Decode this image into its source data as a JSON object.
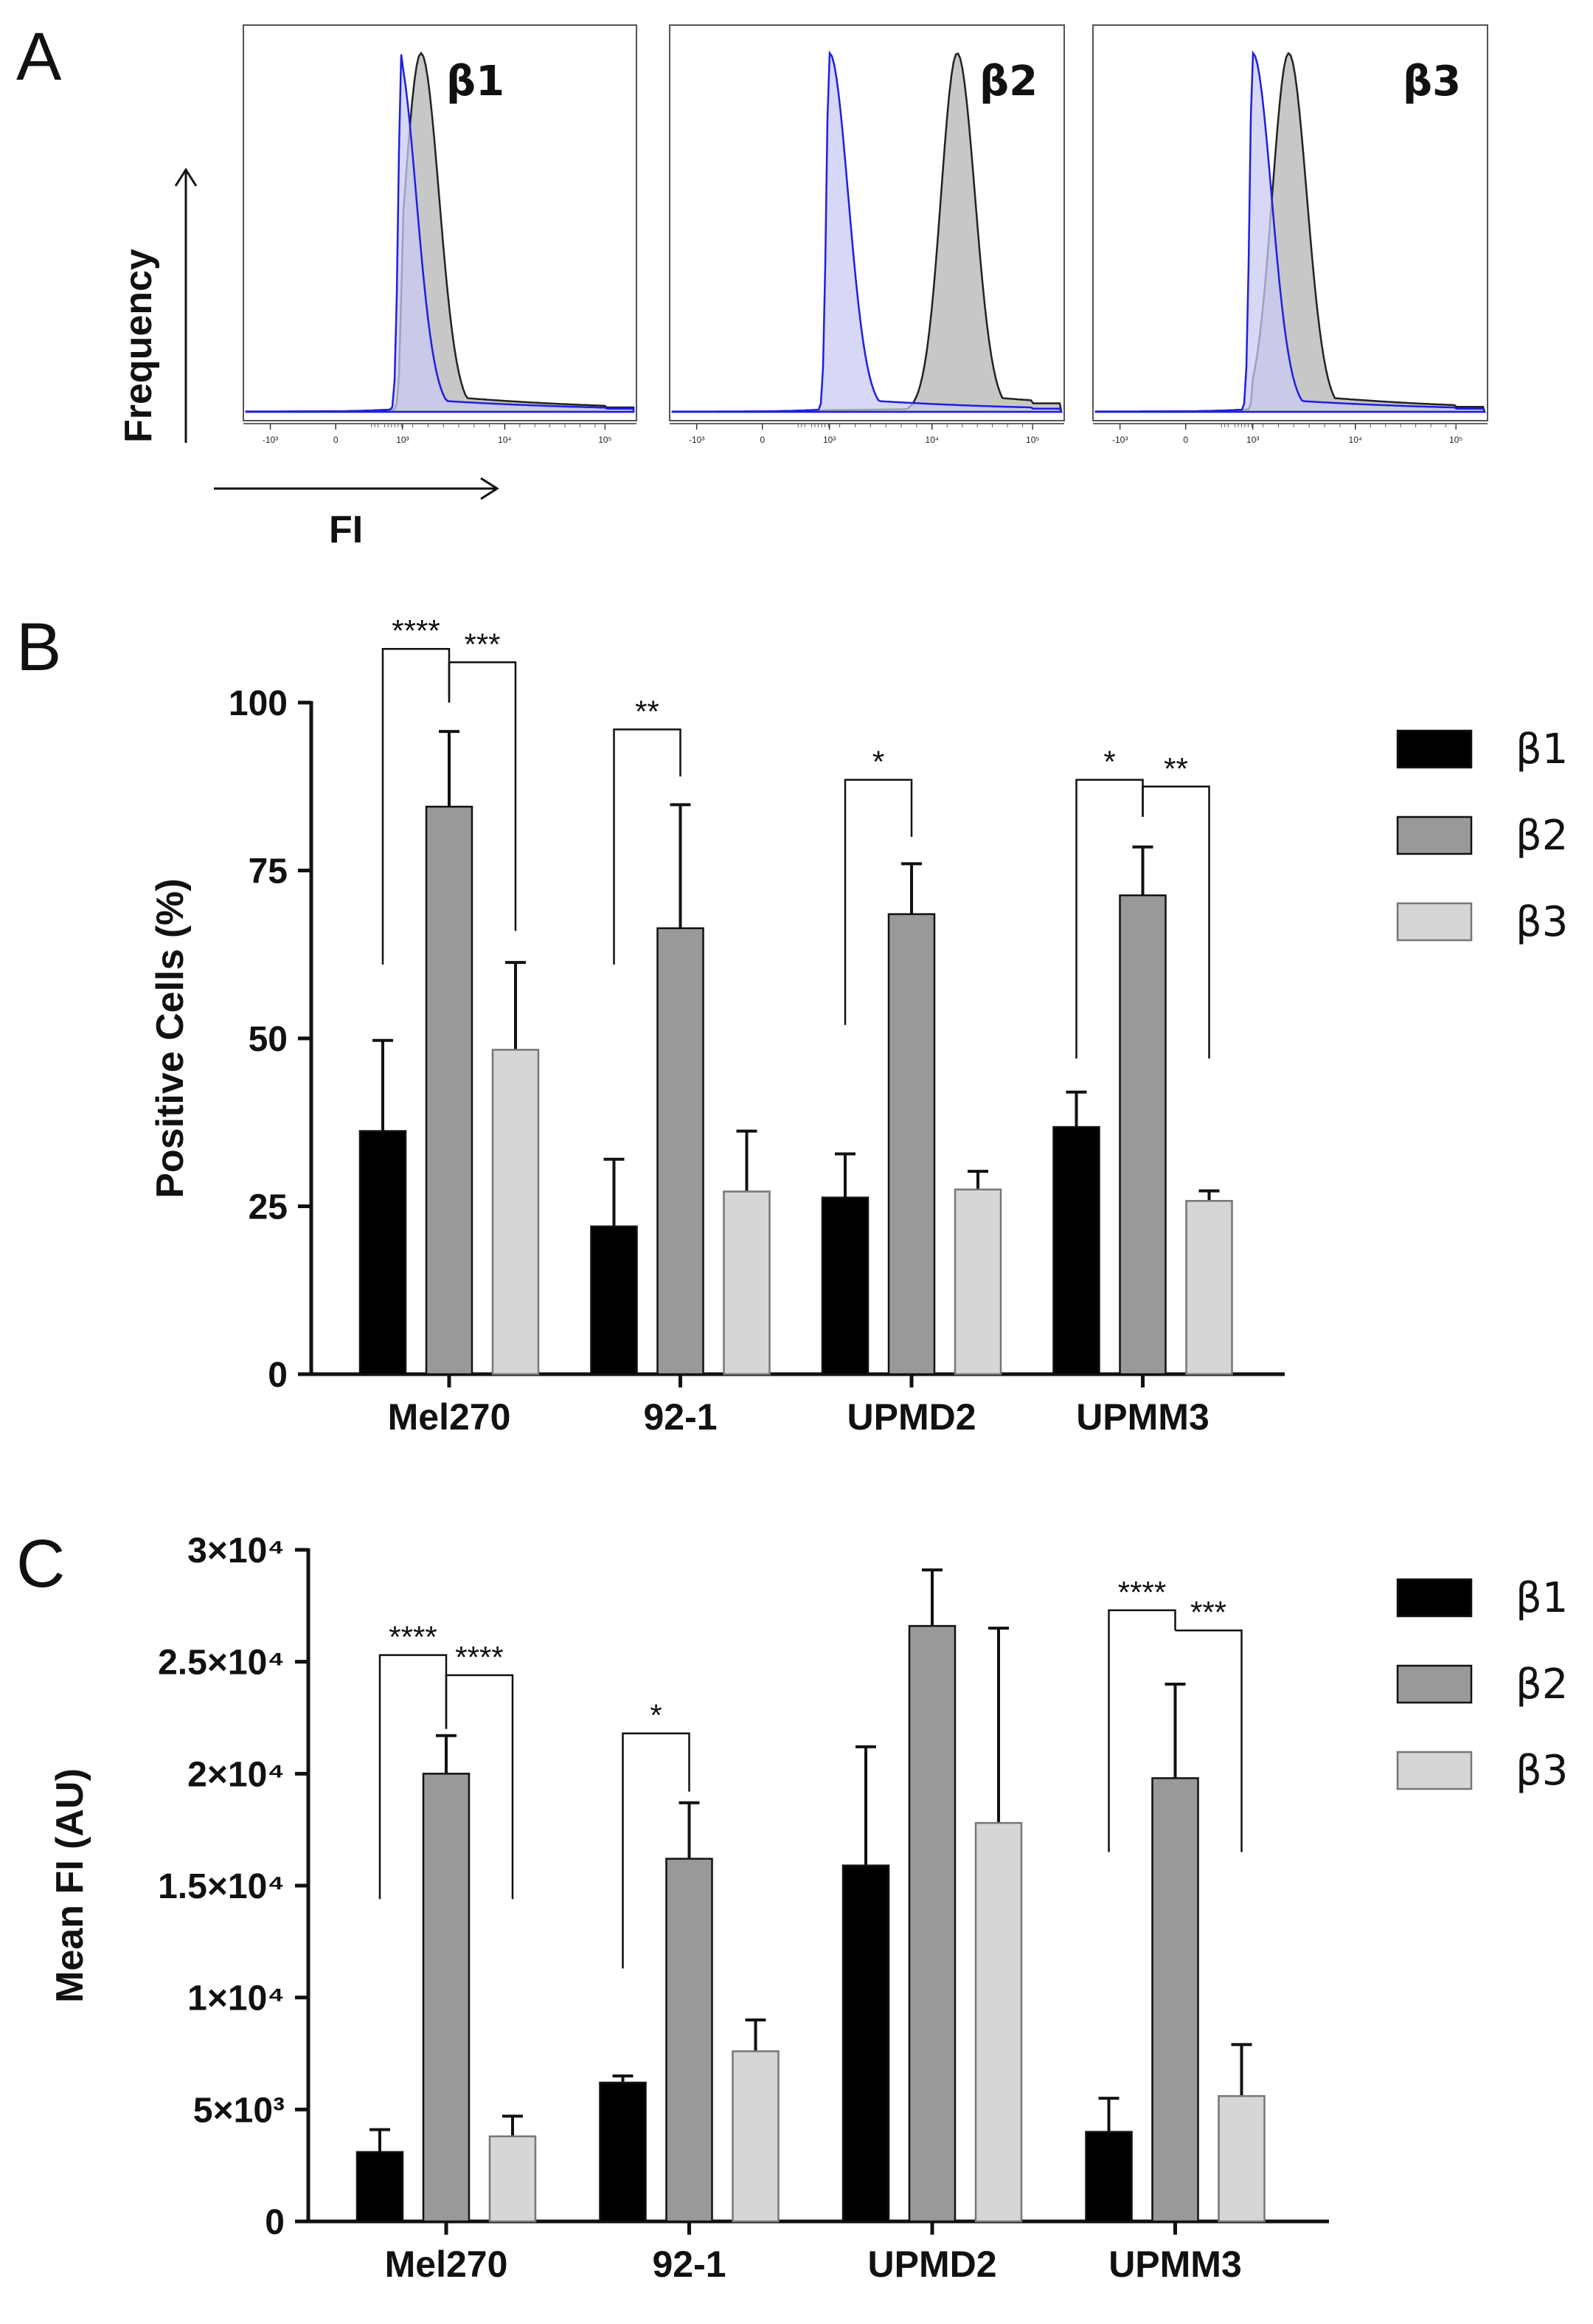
{
  "panel_a": {
    "letter": "A",
    "y_axis_label": "Frequency",
    "x_axis_label": "FI",
    "tick_labels": [
      "-10³",
      "0",
      "10³",
      "10⁴",
      "10⁵"
    ],
    "histograms": [
      {
        "label": "β1",
        "control_peak": 2.95,
        "sample_peak": 3.18
      },
      {
        "label": "β2",
        "control_peak": 3.0,
        "sample_peak": 4.25
      },
      {
        "label": "β3",
        "control_peak": 3.0,
        "sample_peak": 3.35
      }
    ],
    "colors": {
      "control_line": "#1f1fe0",
      "control_fill": "#c9c9f3",
      "sample_line": "#222222",
      "sample_fill": "#c4c4c4"
    }
  },
  "chart_data": [
    {
      "type": "bar",
      "panel": "B",
      "ylabel": "Positive Cells (%)",
      "ylim": [
        0,
        100
      ],
      "yticks": [
        {
          "value": 0,
          "label": "0"
        },
        {
          "value": 25,
          "label": "25"
        },
        {
          "value": 50,
          "label": "50"
        },
        {
          "value": 75,
          "label": "75"
        },
        {
          "value": 100,
          "label": "100"
        }
      ],
      "categories": [
        "Mel270",
        "92-1",
        "UPMD2",
        "UPMM3"
      ],
      "series": [
        {
          "name": "β1",
          "color": "#000000",
          "values": [
            36.2,
            22.0,
            26.3,
            36.8
          ],
          "errors": [
            13.5,
            10.0,
            6.5,
            5.2
          ]
        },
        {
          "name": "β2",
          "color": "#999999",
          "values": [
            84.5,
            66.4,
            68.5,
            71.3
          ],
          "errors": [
            11.2,
            18.4,
            7.5,
            7.2
          ]
        },
        {
          "name": "β3",
          "color": "#d6d6d6",
          "values": [
            48.3,
            27.2,
            27.5,
            25.8
          ],
          "errors": [
            13.0,
            9.0,
            2.7,
            1.5
          ]
        }
      ],
      "significance": [
        {
          "category": 0,
          "from": 0,
          "to": 1,
          "label": "****",
          "level": 108,
          "left_drop": 61,
          "right_drop": 100
        },
        {
          "category": 0,
          "from": 1,
          "to": 2,
          "label": "***",
          "level": 106,
          "left_drop": 100,
          "right_drop": 66
        },
        {
          "category": 1,
          "from": 0,
          "to": 1,
          "label": "**",
          "level": 96,
          "left_drop": 61,
          "right_drop": 89
        },
        {
          "category": 2,
          "from": 0,
          "to": 1,
          "label": "*",
          "level": 88.5,
          "left_drop": 52,
          "right_drop": 80
        },
        {
          "category": 3,
          "from": 0,
          "to": 1,
          "label": "*",
          "level": 88.5,
          "left_drop": 47,
          "right_drop": 83
        },
        {
          "category": 3,
          "from": 1,
          "to": 2,
          "label": "**",
          "level": 87.5,
          "left_drop": 83,
          "right_drop": 47
        }
      ]
    },
    {
      "type": "bar",
      "panel": "C",
      "ylabel": "Mean FI (AU)",
      "ylim": [
        0,
        30000
      ],
      "yticks": [
        {
          "value": 0,
          "label": "0"
        },
        {
          "value": 5000,
          "label": "5×10³"
        },
        {
          "value": 10000,
          "label": "1×10⁴"
        },
        {
          "value": 15000,
          "label": "1.5×10⁴"
        },
        {
          "value": 20000,
          "label": "2×10⁴"
        },
        {
          "value": 25000,
          "label": "2.5×10⁴"
        },
        {
          "value": 30000,
          "label": "3×10⁴"
        }
      ],
      "categories": [
        "Mel270",
        "92-1",
        "UPMD2",
        "UPMM3"
      ],
      "series": [
        {
          "name": "β1",
          "color": "#000000",
          "values": [
            3100,
            6200,
            15900,
            4000
          ],
          "errors": [
            1000,
            300,
            5300,
            1500
          ]
        },
        {
          "name": "β2",
          "color": "#999999",
          "values": [
            20000,
            16200,
            26600,
            19800
          ],
          "errors": [
            1700,
            2500,
            2500,
            4200
          ]
        },
        {
          "name": "β3",
          "color": "#d6d6d6",
          "values": [
            3800,
            7600,
            17800,
            5600
          ],
          "errors": [
            900,
            1400,
            8700,
            2300
          ]
        }
      ],
      "significance": [
        {
          "category": 0,
          "from": 0,
          "to": 1,
          "label": "****",
          "level": 25300,
          "left_drop": 14400,
          "right_drop": 22000
        },
        {
          "category": 0,
          "from": 1,
          "to": 2,
          "label": "****",
          "level": 24400,
          "left_drop": 22000,
          "right_drop": 14400
        },
        {
          "category": 1,
          "from": 0,
          "to": 1,
          "label": "*",
          "level": 21800,
          "left_drop": 11300,
          "right_drop": 19200
        },
        {
          "category": 3,
          "from": 0,
          "to": 1,
          "label": "****",
          "level": 27300,
          "left_drop": 16500,
          "right_drop": 26400
        },
        {
          "category": 3,
          "from": 1,
          "to": 2,
          "label": "***",
          "level": 26400,
          "left_drop": 26400,
          "right_drop": 16500
        }
      ]
    }
  ]
}
